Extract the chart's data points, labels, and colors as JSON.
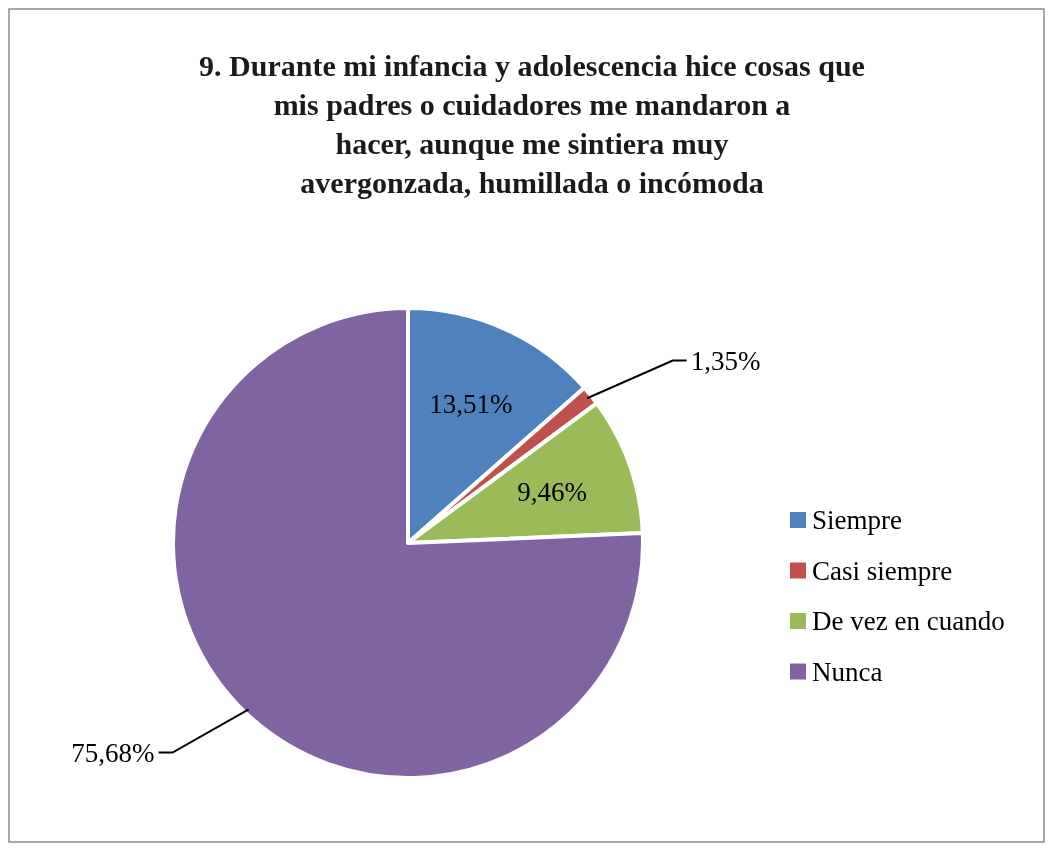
{
  "chart_data": {
    "type": "pie",
    "title": "9. Durante mi infancia y adolescencia hice cosas que mis padres o cuidadores me mandaron a hacer, aunque me sintiera muy avergonzada, humillada o incómoda",
    "categories": [
      "Siempre",
      "Casi siempre",
      "De vez en cuando",
      "Nunca"
    ],
    "values": [
      13.51,
      1.35,
      9.46,
      75.68
    ],
    "colors": [
      "#4f81bd",
      "#c0504d",
      "#9bbb59",
      "#8064a2"
    ],
    "value_labels": [
      "13,51%",
      "1,35%",
      "9,46%",
      "75,68%"
    ],
    "legend": "right"
  }
}
